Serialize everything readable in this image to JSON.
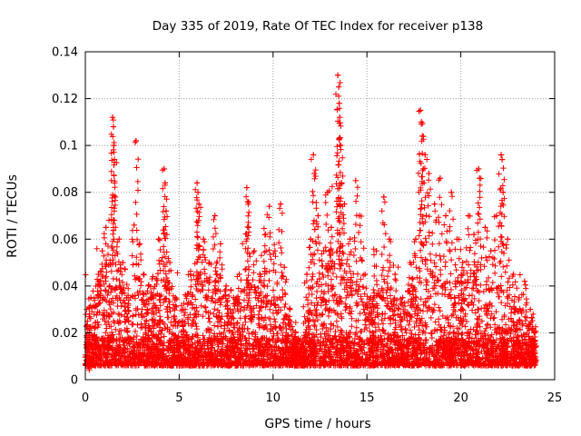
{
  "chart_data": {
    "type": "scatter",
    "title": "Day 335 of 2019, Rate Of TEC Index for receiver p138",
    "xlabel": "GPS time / hours",
    "ylabel": "ROTI / TECUs",
    "xlim": [
      0,
      25
    ],
    "ylim": [
      0,
      0.14
    ],
    "xticks": [
      0,
      5,
      10,
      15,
      20,
      25
    ],
    "xtick_labels": [
      "0",
      "5",
      "10",
      "15",
      "20",
      "25"
    ],
    "yticks": [
      0,
      0.02,
      0.04,
      0.06,
      0.08,
      0.1,
      0.12,
      0.14
    ],
    "ytick_labels": [
      "0",
      "0.02",
      "0.04",
      "0.06",
      "0.08",
      "0.1",
      "0.12",
      "0.14"
    ],
    "grid": true,
    "marker": "plus",
    "color": "#ff0000",
    "series": [
      {
        "name": "ROTI",
        "points": [
          [
            0.1,
            0.012
          ],
          [
            0.3,
            0.035
          ],
          [
            0.5,
            0.022
          ],
          [
            0.7,
            0.045
          ],
          [
            0.9,
            0.055
          ],
          [
            1.1,
            0.065
          ],
          [
            1.3,
            0.04
          ],
          [
            1.45,
            0.112
          ],
          [
            1.5,
            0.108
          ],
          [
            1.52,
            0.1
          ],
          [
            1.55,
            0.094
          ],
          [
            1.6,
            0.078
          ],
          [
            1.8,
            0.06
          ],
          [
            2.0,
            0.05
          ],
          [
            2.2,
            0.035
          ],
          [
            2.7,
            0.102
          ],
          [
            2.6,
            0.066
          ],
          [
            2.9,
            0.058
          ],
          [
            3.1,
            0.045
          ],
          [
            3.3,
            0.03
          ],
          [
            3.6,
            0.044
          ],
          [
            3.9,
            0.06
          ],
          [
            4.2,
            0.09
          ],
          [
            4.25,
            0.084
          ],
          [
            4.3,
            0.072
          ],
          [
            4.5,
            0.05
          ],
          [
            4.8,
            0.035
          ],
          [
            5.2,
            0.03
          ],
          [
            5.6,
            0.045
          ],
          [
            5.95,
            0.084
          ],
          [
            6.0,
            0.08
          ],
          [
            6.05,
            0.075
          ],
          [
            6.3,
            0.06
          ],
          [
            6.6,
            0.05
          ],
          [
            6.9,
            0.07
          ],
          [
            7.2,
            0.058
          ],
          [
            7.5,
            0.04
          ],
          [
            7.9,
            0.035
          ],
          [
            8.2,
            0.045
          ],
          [
            8.6,
            0.082
          ],
          [
            8.65,
            0.076
          ],
          [
            8.7,
            0.065
          ],
          [
            9.0,
            0.055
          ],
          [
            9.3,
            0.045
          ],
          [
            9.6,
            0.062
          ],
          [
            9.8,
            0.074
          ],
          [
            10.1,
            0.055
          ],
          [
            10.4,
            0.075
          ],
          [
            10.6,
            0.048
          ],
          [
            10.9,
            0.03
          ],
          [
            11.2,
            0.02
          ],
          [
            11.5,
            0.015
          ],
          [
            11.8,
            0.045
          ],
          [
            12.0,
            0.06
          ],
          [
            12.15,
            0.096
          ],
          [
            12.2,
            0.088
          ],
          [
            12.4,
            0.07
          ],
          [
            12.7,
            0.055
          ],
          [
            12.9,
            0.08
          ],
          [
            13.1,
            0.065
          ],
          [
            13.45,
            0.13
          ],
          [
            13.5,
            0.125
          ],
          [
            13.52,
            0.118
          ],
          [
            13.55,
            0.112
          ],
          [
            13.6,
            0.1
          ],
          [
            13.65,
            0.084
          ],
          [
            13.8,
            0.075
          ],
          [
            14.1,
            0.06
          ],
          [
            14.4,
            0.085
          ],
          [
            14.6,
            0.07
          ],
          [
            14.9,
            0.045
          ],
          [
            15.2,
            0.035
          ],
          [
            15.5,
            0.055
          ],
          [
            15.9,
            0.078
          ],
          [
            16.2,
            0.06
          ],
          [
            16.5,
            0.045
          ],
          [
            16.9,
            0.035
          ],
          [
            17.3,
            0.05
          ],
          [
            17.6,
            0.06
          ],
          [
            17.85,
            0.115
          ],
          [
            17.9,
            0.11
          ],
          [
            17.95,
            0.104
          ],
          [
            18.0,
            0.09
          ],
          [
            18.1,
            0.096
          ],
          [
            18.3,
            0.088
          ],
          [
            18.6,
            0.075
          ],
          [
            18.9,
            0.086
          ],
          [
            19.2,
            0.07
          ],
          [
            19.5,
            0.08
          ],
          [
            19.8,
            0.06
          ],
          [
            20.1,
            0.05
          ],
          [
            20.4,
            0.07
          ],
          [
            20.7,
            0.062
          ],
          [
            20.95,
            0.09
          ],
          [
            21.0,
            0.086
          ],
          [
            21.3,
            0.065
          ],
          [
            21.6,
            0.055
          ],
          [
            21.9,
            0.07
          ],
          [
            22.15,
            0.096
          ],
          [
            22.2,
            0.094
          ],
          [
            22.25,
            0.08
          ],
          [
            22.5,
            0.06
          ],
          [
            22.8,
            0.045
          ],
          [
            23.1,
            0.035
          ],
          [
            23.4,
            0.042
          ],
          [
            23.7,
            0.03
          ],
          [
            23.9,
            0.02
          ]
        ],
        "density_envelope": [
          [
            0.0,
            0.03
          ],
          [
            0.5,
            0.04
          ],
          [
            1.0,
            0.05
          ],
          [
            1.5,
            0.055
          ],
          [
            2.0,
            0.045
          ],
          [
            2.5,
            0.04
          ],
          [
            3.0,
            0.045
          ],
          [
            3.5,
            0.04
          ],
          [
            4.0,
            0.05
          ],
          [
            4.5,
            0.045
          ],
          [
            5.0,
            0.03
          ],
          [
            5.5,
            0.04
          ],
          [
            6.0,
            0.05
          ],
          [
            6.5,
            0.045
          ],
          [
            7.0,
            0.05
          ],
          [
            7.5,
            0.04
          ],
          [
            8.0,
            0.035
          ],
          [
            8.5,
            0.04
          ],
          [
            9.0,
            0.045
          ],
          [
            9.5,
            0.05
          ],
          [
            10.0,
            0.04
          ],
          [
            10.5,
            0.035
          ],
          [
            11.0,
            0.022
          ],
          [
            11.5,
            0.016
          ],
          [
            12.0,
            0.045
          ],
          [
            12.5,
            0.05
          ],
          [
            13.0,
            0.055
          ],
          [
            13.5,
            0.06
          ],
          [
            14.0,
            0.05
          ],
          [
            14.5,
            0.045
          ],
          [
            15.0,
            0.04
          ],
          [
            15.5,
            0.04
          ],
          [
            16.0,
            0.045
          ],
          [
            16.5,
            0.035
          ],
          [
            17.0,
            0.035
          ],
          [
            17.5,
            0.045
          ],
          [
            18.0,
            0.055
          ],
          [
            18.5,
            0.05
          ],
          [
            19.0,
            0.045
          ],
          [
            19.5,
            0.04
          ],
          [
            20.0,
            0.045
          ],
          [
            20.5,
            0.05
          ],
          [
            21.0,
            0.045
          ],
          [
            21.5,
            0.04
          ],
          [
            22.0,
            0.045
          ],
          [
            22.5,
            0.035
          ],
          [
            23.0,
            0.03
          ],
          [
            23.5,
            0.028
          ],
          [
            24.0,
            0.025
          ]
        ],
        "floor": 0.006
      }
    ]
  }
}
